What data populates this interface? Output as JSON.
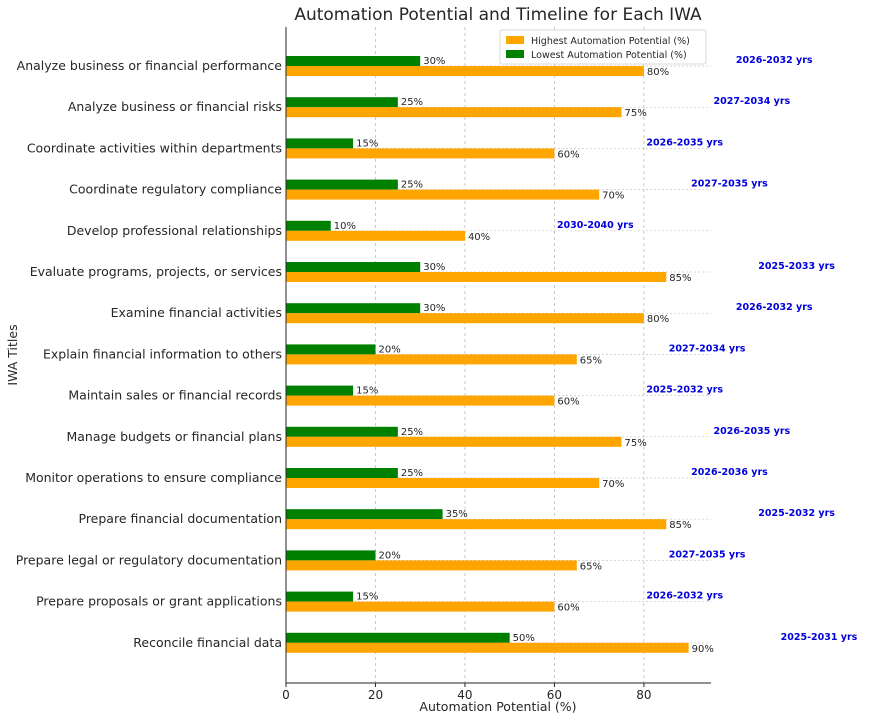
{
  "chart_data": {
    "type": "bar",
    "orientation": "horizontal",
    "title": "Automation Potential and Timeline for Each IWA",
    "xlabel": "Automation Potential (%)",
    "ylabel": "IWA Titles",
    "xlim": [
      0,
      95
    ],
    "xticks": [
      0,
      20,
      40,
      60,
      80
    ],
    "grid": true,
    "legend_position": "top-right",
    "categories": [
      "Analyze business or financial performance",
      "Analyze business or financial risks",
      "Coordinate activities within departments",
      "Coordinate regulatory compliance",
      "Develop professional relationships",
      "Evaluate programs, projects, or services",
      "Examine financial activities",
      "Explain financial information to others",
      "Maintain sales or financial records",
      "Manage budgets or financial plans",
      "Monitor operations to ensure compliance",
      "Prepare financial documentation",
      "Prepare legal or regulatory documentation",
      "Prepare proposals or grant applications",
      "Reconcile financial data"
    ],
    "series": [
      {
        "name": "Highest Automation Potential (%)",
        "color": "#ffa500",
        "values": [
          80,
          75,
          60,
          70,
          40,
          85,
          80,
          65,
          60,
          75,
          70,
          85,
          65,
          60,
          90
        ]
      },
      {
        "name": "Lowest Automation Potential (%)",
        "color": "#008000",
        "values": [
          30,
          25,
          15,
          25,
          10,
          30,
          30,
          20,
          15,
          25,
          25,
          35,
          20,
          15,
          50
        ]
      }
    ],
    "annotations": [
      "2026-2032 yrs",
      "2027-2034 yrs",
      "2026-2035 yrs",
      "2027-2035 yrs",
      "2030-2040 yrs",
      "2025-2033 yrs",
      "2026-2032 yrs",
      "2027-2034 yrs",
      "2025-2032 yrs",
      "2026-2035 yrs",
      "2026-2036 yrs",
      "2025-2032 yrs",
      "2027-2035 yrs",
      "2026-2032 yrs",
      "2025-2031 yrs"
    ],
    "annotation_color": "#0000dd"
  }
}
